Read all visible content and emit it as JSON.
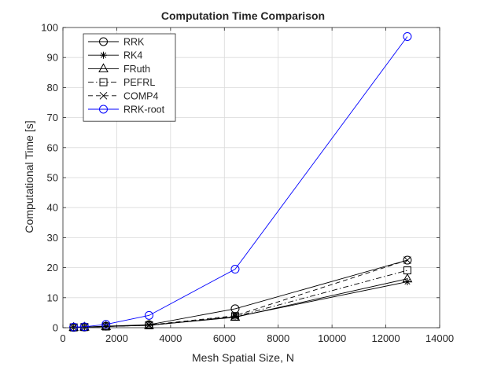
{
  "chart_data": {
    "type": "line",
    "title": "Computation Time Comparison",
    "xlabel": "Mesh Spatial Size, N",
    "ylabel": "Computational Time [s]",
    "xlim": [
      0,
      14000
    ],
    "ylim": [
      0,
      100
    ],
    "xticks": [
      0,
      2000,
      4000,
      6000,
      8000,
      10000,
      12000,
      14000
    ],
    "yticks": [
      0,
      10,
      20,
      30,
      40,
      50,
      60,
      70,
      80,
      90,
      100
    ],
    "grid": true,
    "legend_position": "top-left",
    "x": [
      400,
      800,
      1600,
      3200,
      6400,
      12800
    ],
    "series": [
      {
        "name": "RRK",
        "values": [
          0.1,
          0.2,
          0.5,
          1.0,
          6.3,
          22.5
        ],
        "color": "#000000",
        "dash": "",
        "marker": "circle"
      },
      {
        "name": "RK4",
        "values": [
          0.1,
          0.2,
          0.4,
          0.8,
          3.6,
          15.3
        ],
        "color": "#000000",
        "dash": "",
        "marker": "asterisk"
      },
      {
        "name": "FRuth",
        "values": [
          0.1,
          0.2,
          0.4,
          0.8,
          3.5,
          16.3
        ],
        "color": "#000000",
        "dash": "",
        "marker": "triangle"
      },
      {
        "name": "PEFRL",
        "values": [
          0.1,
          0.2,
          0.4,
          0.8,
          3.7,
          19.1
        ],
        "color": "#000000",
        "dash": "7 3 1.5 3",
        "marker": "square"
      },
      {
        "name": "COMP4",
        "values": [
          0.1,
          0.2,
          0.4,
          0.9,
          4.0,
          22.5
        ],
        "color": "#000000",
        "dash": "6 4",
        "marker": "x"
      },
      {
        "name": "RRK-root",
        "values": [
          0.2,
          0.3,
          1.1,
          4.1,
          19.5,
          97.0
        ],
        "color": "#0000ff",
        "dash": "",
        "marker": "circle"
      }
    ]
  }
}
